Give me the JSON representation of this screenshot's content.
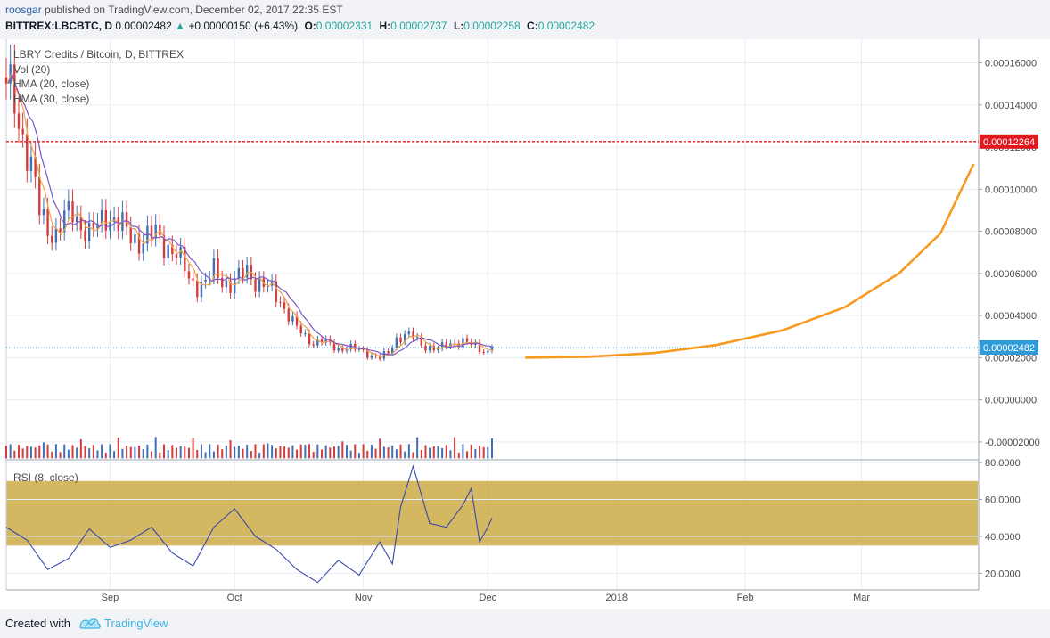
{
  "header": {
    "author": "roosgar",
    "published": "published on TradingView.com, December 02, 2017 22:35 EST",
    "symbol": "BITTREX:LBCBTC, D",
    "last": "0.00002482",
    "change": "+0.00000150 (+6.43%)",
    "o_label": "O:",
    "o_value": "0.00002331",
    "h_label": "H:",
    "h_value": "0.00002737",
    "l_label": "L:",
    "l_value": "0.00002258",
    "c_label": "C:",
    "c_value": "0.00002482"
  },
  "legend": {
    "title": "LBRY Credits / Bitcoin, D, BITTREX",
    "vol": "Vol (20)",
    "hma20": "HMA (20, close)",
    "hma30": "HMA (30, close)",
    "rsi": "RSI (8, close)"
  },
  "footer": {
    "created_with": "Created with",
    "brand": "TradingView"
  },
  "colors": {
    "up": "#26a69a",
    "down": "#ef5350",
    "bull_candle": "#3f6fb5",
    "bear_candle": "#d63b3b",
    "hma20": "#f0a44a",
    "hma30": "#7e57c2",
    "projection": "#f79a1e",
    "resistance": "#e0191f",
    "rsi_line": "#3949ab",
    "rsi_band": "#c8a53a"
  },
  "chart_data": [
    {
      "type": "candlestick",
      "title": "LBRY Credits / Bitcoin, D, BITTREX",
      "x_tick_labels": [
        "Sep",
        "Oct",
        "Nov",
        "Dec",
        "2018",
        "Feb",
        "Mar"
      ],
      "x_tick_dates": [
        "2017-09-01",
        "2017-10-01",
        "2017-11-01",
        "2017-12-01",
        "2018-01-01",
        "2018-02-01",
        "2018-03-01"
      ],
      "y_tick_labels": [
        "0.00016000",
        "0.00014000",
        "0.00012000",
        "0.00010000",
        "0.00008000",
        "0.00006000",
        "0.00004000",
        "0.00002000",
        "0.00000000",
        "-0.00002000"
      ],
      "ylim": [
        -2.85e-05,
        0.000167
      ],
      "xlim": [
        "2017-08-07",
        "2018-03-29"
      ],
      "last_price": 2.482e-05,
      "last_price_label": "0.00002482",
      "resistance": 0.00012264,
      "resistance_label": "0.00012264",
      "close_series": [
        {
          "date": "2017-08-07",
          "close": 0.00015
        },
        {
          "date": "2017-08-09",
          "close": 0.000142
        },
        {
          "date": "2017-08-11",
          "close": 0.000125
        },
        {
          "date": "2017-08-13",
          "close": 0.00011
        },
        {
          "date": "2017-08-15",
          "close": 9e-05
        },
        {
          "date": "2017-08-17",
          "close": 8.2e-05
        },
        {
          "date": "2017-08-19",
          "close": 7.8e-05
        },
        {
          "date": "2017-08-21",
          "close": 8.6e-05
        },
        {
          "date": "2017-08-23",
          "close": 9e-05
        },
        {
          "date": "2017-08-25",
          "close": 8.3e-05
        },
        {
          "date": "2017-08-27",
          "close": 7.8e-05
        },
        {
          "date": "2017-08-29",
          "close": 8.3e-05
        },
        {
          "date": "2017-08-31",
          "close": 8.8e-05
        },
        {
          "date": "2017-09-02",
          "close": 8.5e-05
        },
        {
          "date": "2017-09-04",
          "close": 8.2e-05
        },
        {
          "date": "2017-09-06",
          "close": 7.8e-05
        },
        {
          "date": "2017-09-08",
          "close": 7.5e-05
        },
        {
          "date": "2017-09-10",
          "close": 7.7e-05
        },
        {
          "date": "2017-09-12",
          "close": 7.9e-05
        },
        {
          "date": "2017-09-14",
          "close": 7.4e-05
        },
        {
          "date": "2017-09-16",
          "close": 7.1e-05
        },
        {
          "date": "2017-09-18",
          "close": 6.6e-05
        },
        {
          "date": "2017-09-20",
          "close": 5.8e-05
        },
        {
          "date": "2017-09-22",
          "close": 5.4e-05
        },
        {
          "date": "2017-09-24",
          "close": 5.5e-05
        },
        {
          "date": "2017-09-26",
          "close": 6.2e-05
        },
        {
          "date": "2017-09-28",
          "close": 5.7e-05
        },
        {
          "date": "2017-09-30",
          "close": 5.4e-05
        },
        {
          "date": "2017-10-02",
          "close": 5.8e-05
        },
        {
          "date": "2017-10-04",
          "close": 6.2e-05
        },
        {
          "date": "2017-10-06",
          "close": 5.6e-05
        },
        {
          "date": "2017-10-08",
          "close": 5.4e-05
        },
        {
          "date": "2017-10-10",
          "close": 5.2e-05
        },
        {
          "date": "2017-10-12",
          "close": 4.7e-05
        },
        {
          "date": "2017-10-14",
          "close": 4e-05
        },
        {
          "date": "2017-10-16",
          "close": 3.4e-05
        },
        {
          "date": "2017-10-18",
          "close": 3e-05
        },
        {
          "date": "2017-10-20",
          "close": 2.7e-05
        },
        {
          "date": "2017-10-22",
          "close": 2.8e-05
        },
        {
          "date": "2017-10-24",
          "close": 2.6e-05
        },
        {
          "date": "2017-10-26",
          "close": 2.4e-05
        },
        {
          "date": "2017-10-28",
          "close": 2.5e-05
        },
        {
          "date": "2017-10-30",
          "close": 2.4e-05
        },
        {
          "date": "2017-11-01",
          "close": 2.3e-05
        },
        {
          "date": "2017-11-03",
          "close": 2.1e-05
        },
        {
          "date": "2017-11-05",
          "close": 2e-05
        },
        {
          "date": "2017-11-07",
          "close": 2.2e-05
        },
        {
          "date": "2017-11-09",
          "close": 2.9e-05
        },
        {
          "date": "2017-11-11",
          "close": 3.1e-05
        },
        {
          "date": "2017-11-13",
          "close": 3e-05
        },
        {
          "date": "2017-11-15",
          "close": 2.6e-05
        },
        {
          "date": "2017-11-17",
          "close": 2.5e-05
        },
        {
          "date": "2017-11-19",
          "close": 2.4e-05
        },
        {
          "date": "2017-11-21",
          "close": 2.6e-05
        },
        {
          "date": "2017-11-23",
          "close": 2.7e-05
        },
        {
          "date": "2017-11-25",
          "close": 2.8e-05
        },
        {
          "date": "2017-11-27",
          "close": 2.6e-05
        },
        {
          "date": "2017-11-29",
          "close": 2.4e-05
        },
        {
          "date": "2017-12-01",
          "close": 2.3e-05
        },
        {
          "date": "2017-12-02",
          "close": 2.482e-05
        }
      ],
      "series": [
        {
          "name": "Vol (20)",
          "type": "bar"
        },
        {
          "name": "HMA (20, close)",
          "type": "line"
        },
        {
          "name": "HMA (30, close)",
          "type": "line"
        }
      ],
      "projection_curve": [
        {
          "date": "2017-12-10",
          "value": 2e-05
        },
        {
          "date": "2017-12-25",
          "value": 2.04e-05
        },
        {
          "date": "2018-01-10",
          "value": 2.22e-05
        },
        {
          "date": "2018-01-25",
          "value": 2.6e-05
        },
        {
          "date": "2018-02-10",
          "value": 3.3e-05
        },
        {
          "date": "2018-02-25",
          "value": 4.4e-05
        },
        {
          "date": "2018-03-10",
          "value": 6e-05
        },
        {
          "date": "2018-03-20",
          "value": 7.9e-05
        },
        {
          "date": "2018-03-28",
          "value": 0.000112
        }
      ],
      "grid": true,
      "legend_position": "top-left"
    },
    {
      "type": "line",
      "title": "RSI (8, close)",
      "y_tick_labels": [
        "80.0000",
        "60.0000",
        "40.0000",
        "20.0000"
      ],
      "ylim": [
        11,
        81
      ],
      "band": [
        35,
        70
      ],
      "x": [
        "2017-08-07",
        "2017-08-12",
        "2017-08-17",
        "2017-08-22",
        "2017-08-27",
        "2017-09-01",
        "2017-09-06",
        "2017-09-11",
        "2017-09-16",
        "2017-09-21",
        "2017-09-26",
        "2017-10-01",
        "2017-10-06",
        "2017-10-11",
        "2017-10-16",
        "2017-10-21",
        "2017-10-26",
        "2017-10-31",
        "2017-11-05",
        "2017-11-08",
        "2017-11-10",
        "2017-11-13",
        "2017-11-17",
        "2017-11-21",
        "2017-11-25",
        "2017-11-27",
        "2017-11-29",
        "2017-12-01",
        "2017-12-02"
      ],
      "values": [
        45,
        38,
        22,
        28,
        44,
        34,
        38,
        45,
        31,
        24,
        45,
        55,
        40,
        33,
        22,
        15,
        27,
        19,
        37,
        25,
        56,
        78,
        47,
        45,
        57,
        66,
        37,
        45,
        50
      ],
      "grid": true
    }
  ]
}
